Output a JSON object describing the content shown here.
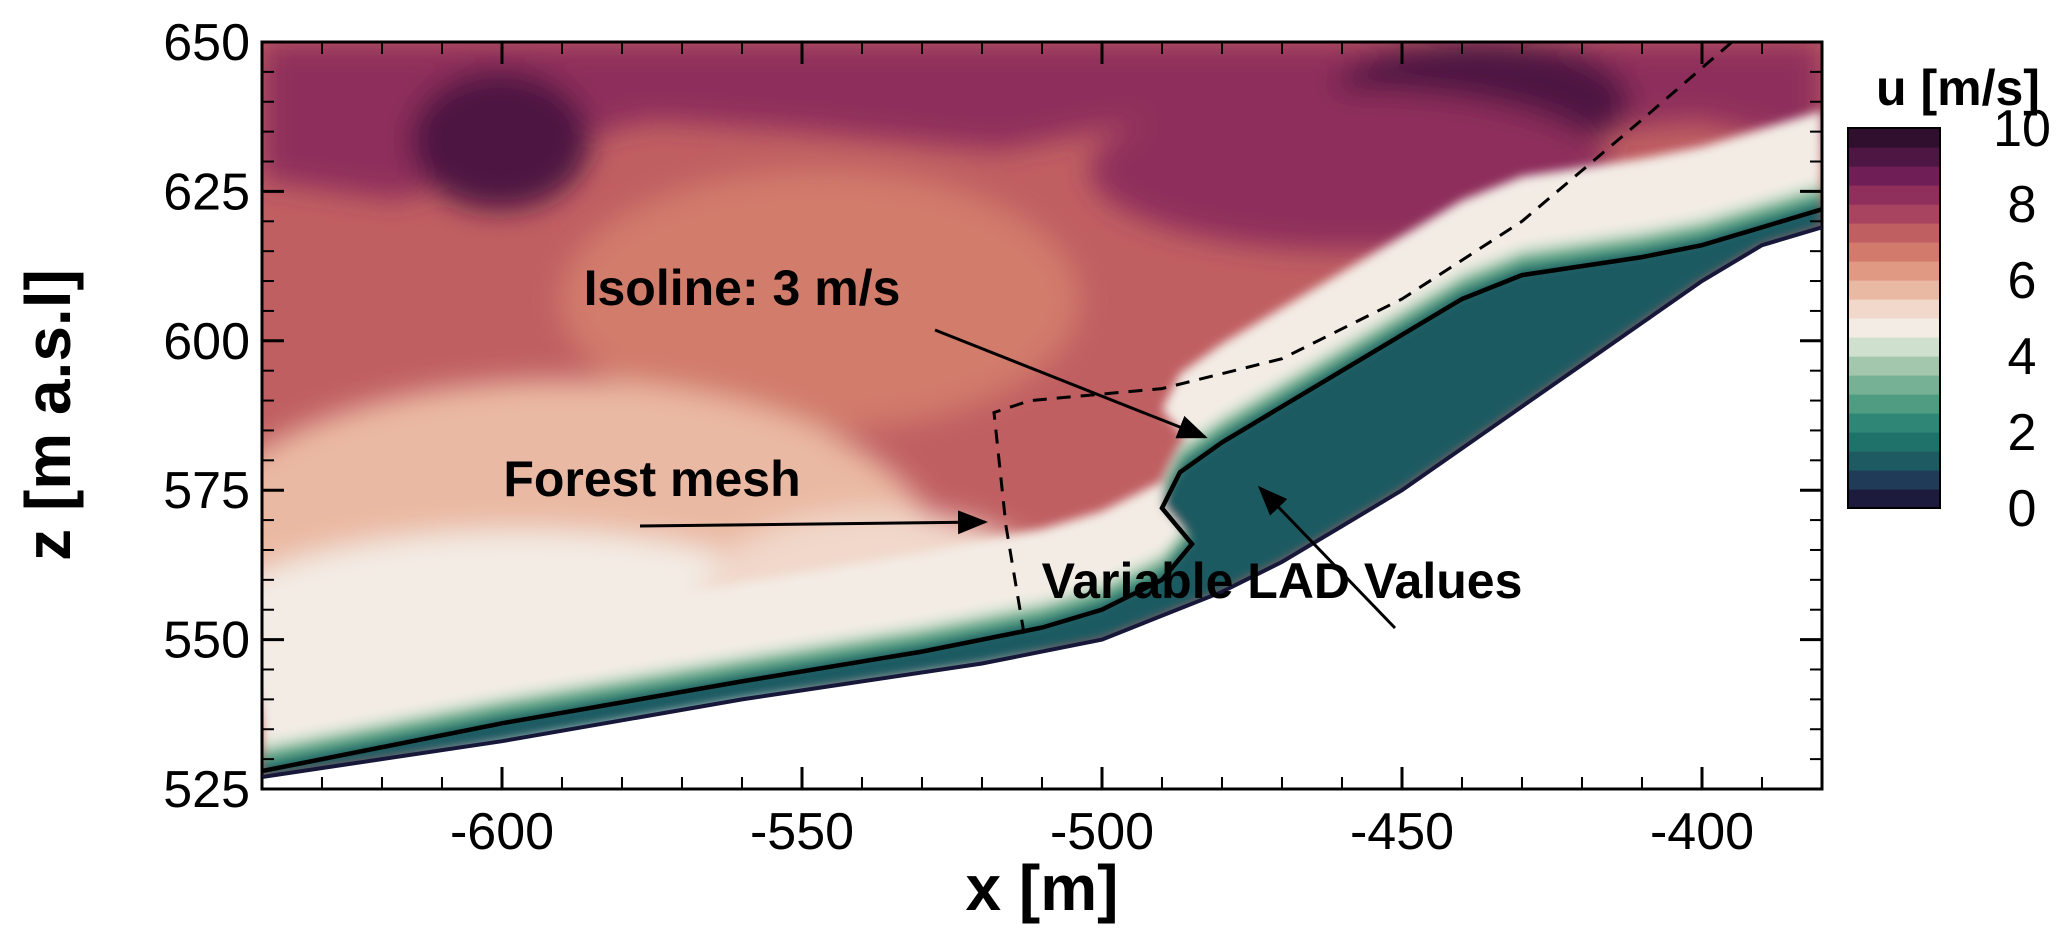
{
  "chart_data": {
    "type": "heatmap",
    "xlabel": "x [m]",
    "ylabel": "z [m a.s.l]",
    "xlim": [
      -640,
      -380
    ],
    "ylim": [
      525,
      650
    ],
    "x_ticks": [
      -600,
      -550,
      -500,
      -450,
      -400
    ],
    "x_tick_labels": [
      "-600",
      "-550",
      "-500",
      "-450",
      "-400"
    ],
    "y_ticks": [
      525,
      550,
      575,
      600,
      625,
      650
    ],
    "y_tick_labels": [
      "525",
      "550",
      "575",
      "600",
      "625",
      "650"
    ],
    "colorbar": {
      "title": "u [m/s]",
      "min": 0,
      "max": 10,
      "ticks": [
        0,
        2,
        4,
        6,
        8,
        10
      ],
      "tick_labels": [
        "0",
        "2",
        "4",
        "6",
        "8",
        "10"
      ],
      "palette": [
        "#1d1b3d",
        "#1f3b58",
        "#1d5a62",
        "#1f7269",
        "#2f8676",
        "#509c83",
        "#77b195",
        "#a3c7ad",
        "#cfe0cf",
        "#f3ece5",
        "#f1d8cb",
        "#eab9a3",
        "#e09a83",
        "#d27b6c",
        "#c05f62",
        "#a94460",
        "#8e2f5c",
        "#6f1f55",
        "#4e1643",
        "#2f0e2e"
      ]
    },
    "terrain_surface": [
      [
        -640,
        527
      ],
      [
        -600,
        533
      ],
      [
        -560,
        540
      ],
      [
        -540,
        543
      ],
      [
        -520,
        546
      ],
      [
        -510,
        548
      ],
      [
        -500,
        550
      ],
      [
        -490,
        554
      ],
      [
        -480,
        558
      ],
      [
        -470,
        563
      ],
      [
        -460,
        569
      ],
      [
        -450,
        575
      ],
      [
        -440,
        582
      ],
      [
        -430,
        589
      ],
      [
        -420,
        596
      ],
      [
        -410,
        603
      ],
      [
        -400,
        610
      ],
      [
        -390,
        616
      ],
      [
        -380,
        619
      ]
    ],
    "isoline_3ms": [
      [
        -640,
        528
      ],
      [
        -600,
        536
      ],
      [
        -560,
        543
      ],
      [
        -530,
        548
      ],
      [
        -510,
        552
      ],
      [
        -500,
        555
      ],
      [
        -490,
        560
      ],
      [
        -485,
        566
      ],
      [
        -490,
        572
      ],
      [
        -487,
        578
      ],
      [
        -480,
        583
      ],
      [
        -470,
        589
      ],
      [
        -460,
        595
      ],
      [
        -450,
        601
      ],
      [
        -440,
        607
      ],
      [
        -430,
        611
      ],
      [
        -410,
        614
      ],
      [
        -400,
        616
      ],
      [
        -390,
        619
      ],
      [
        -380,
        622
      ]
    ],
    "forest_mesh_boundary": [
      [
        -513,
        551
      ],
      [
        -516,
        569
      ],
      [
        -518,
        588
      ],
      [
        -512,
        590
      ],
      [
        -490,
        592
      ],
      [
        -470,
        597
      ],
      [
        -450,
        607
      ],
      [
        -430,
        620
      ],
      [
        -410,
        637
      ],
      [
        -395,
        650
      ]
    ],
    "annotations": [
      {
        "text": "Isoline: 3 m/s",
        "x": -560,
        "y": 606,
        "arrow_to": [
          -482,
          583
        ]
      },
      {
        "text": "Forest mesh",
        "x": -575,
        "y": 574,
        "arrow_to": [
          -517,
          570
        ]
      },
      {
        "text": "Variable LAD Values",
        "x": -470,
        "y": 557,
        "arrow_to": [
          -478,
          575
        ]
      }
    ]
  }
}
